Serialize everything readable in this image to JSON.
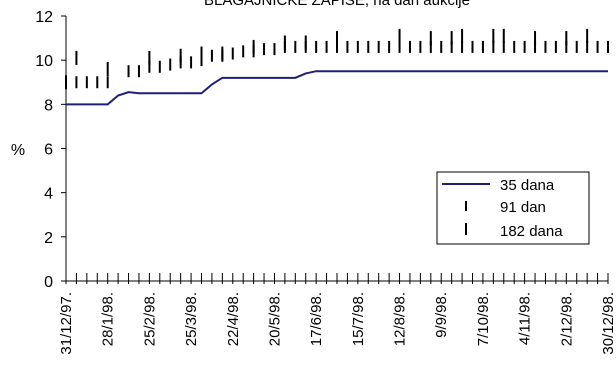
{
  "chart_data": {
    "type": "line",
    "title": "BLAGAJNIČKE ZAPISE, na dan aukcije",
    "ylabel": "%",
    "ylim": [
      0,
      12
    ],
    "yticks": [
      "0",
      "2",
      "4",
      "6",
      "8",
      "10",
      "12"
    ],
    "x_tick_labels": [
      "31/12/97.",
      "28/1/98.",
      "25/2/98.",
      "25/3/98.",
      "22/4/98.",
      "20/5/98.",
      "17/6/98.",
      "15/7/98.",
      "12/8/98.",
      "9/9/98.",
      "7/10/98.",
      "4/11/98.",
      "2/12/98.",
      "30/12/98."
    ],
    "x_count": 53,
    "legend_position": "right",
    "series": [
      {
        "name": "35 dana",
        "color": "#1f1f7a",
        "values": [
          8.0,
          8.0,
          8.0,
          8.0,
          8.0,
          8.4,
          8.55,
          8.5,
          8.5,
          8.5,
          8.5,
          8.5,
          8.5,
          8.5,
          8.9,
          9.2,
          9.2,
          9.2,
          9.2,
          9.2,
          9.2,
          9.2,
          9.2,
          9.4,
          9.5,
          9.5,
          9.5,
          9.5,
          9.5,
          9.5,
          9.5,
          9.5,
          9.5,
          9.5,
          9.5,
          9.5,
          9.5,
          9.5,
          9.5,
          9.5,
          9.5,
          9.5,
          9.5,
          9.5,
          9.5,
          9.5,
          9.5,
          9.5,
          9.5,
          9.5,
          9.5,
          9.5,
          9.5
        ]
      },
      {
        "name": "91 dan",
        "color": "#000000",
        "values": [
          9.0,
          9.0,
          9.0,
          9.0,
          9.0,
          null,
          9.5,
          9.5,
          9.7,
          9.7,
          9.8,
          9.9,
          9.9,
          10.0,
          10.2,
          10.2,
          10.3,
          10.4,
          10.4,
          10.5,
          10.5,
          10.6,
          10.6,
          10.6,
          10.6,
          10.6,
          10.6,
          10.6,
          10.6,
          10.6,
          10.6,
          10.6,
          10.6,
          10.6,
          10.6,
          10.6,
          10.6,
          10.6,
          10.6,
          10.6,
          10.6,
          10.6,
          10.6,
          10.6,
          10.6,
          10.6,
          10.6,
          10.6,
          10.6,
          10.6,
          10.6,
          10.6,
          10.6
        ]
      },
      {
        "name": "182 dana",
        "color": "#000000",
        "values": [
          9.0,
          10.1,
          null,
          null,
          9.6,
          null,
          null,
          null,
          10.1,
          null,
          null,
          10.2,
          null,
          10.3,
          null,
          10.3,
          null,
          null,
          10.6,
          null,
          null,
          10.8,
          null,
          10.8,
          null,
          null,
          11.0,
          null,
          null,
          null,
          null,
          null,
          11.1,
          null,
          null,
          11.0,
          null,
          11.0,
          11.1,
          null,
          null,
          11.1,
          11.1,
          null,
          null,
          11.0,
          null,
          null,
          11.0,
          null,
          11.1,
          null,
          null
        ]
      }
    ]
  }
}
